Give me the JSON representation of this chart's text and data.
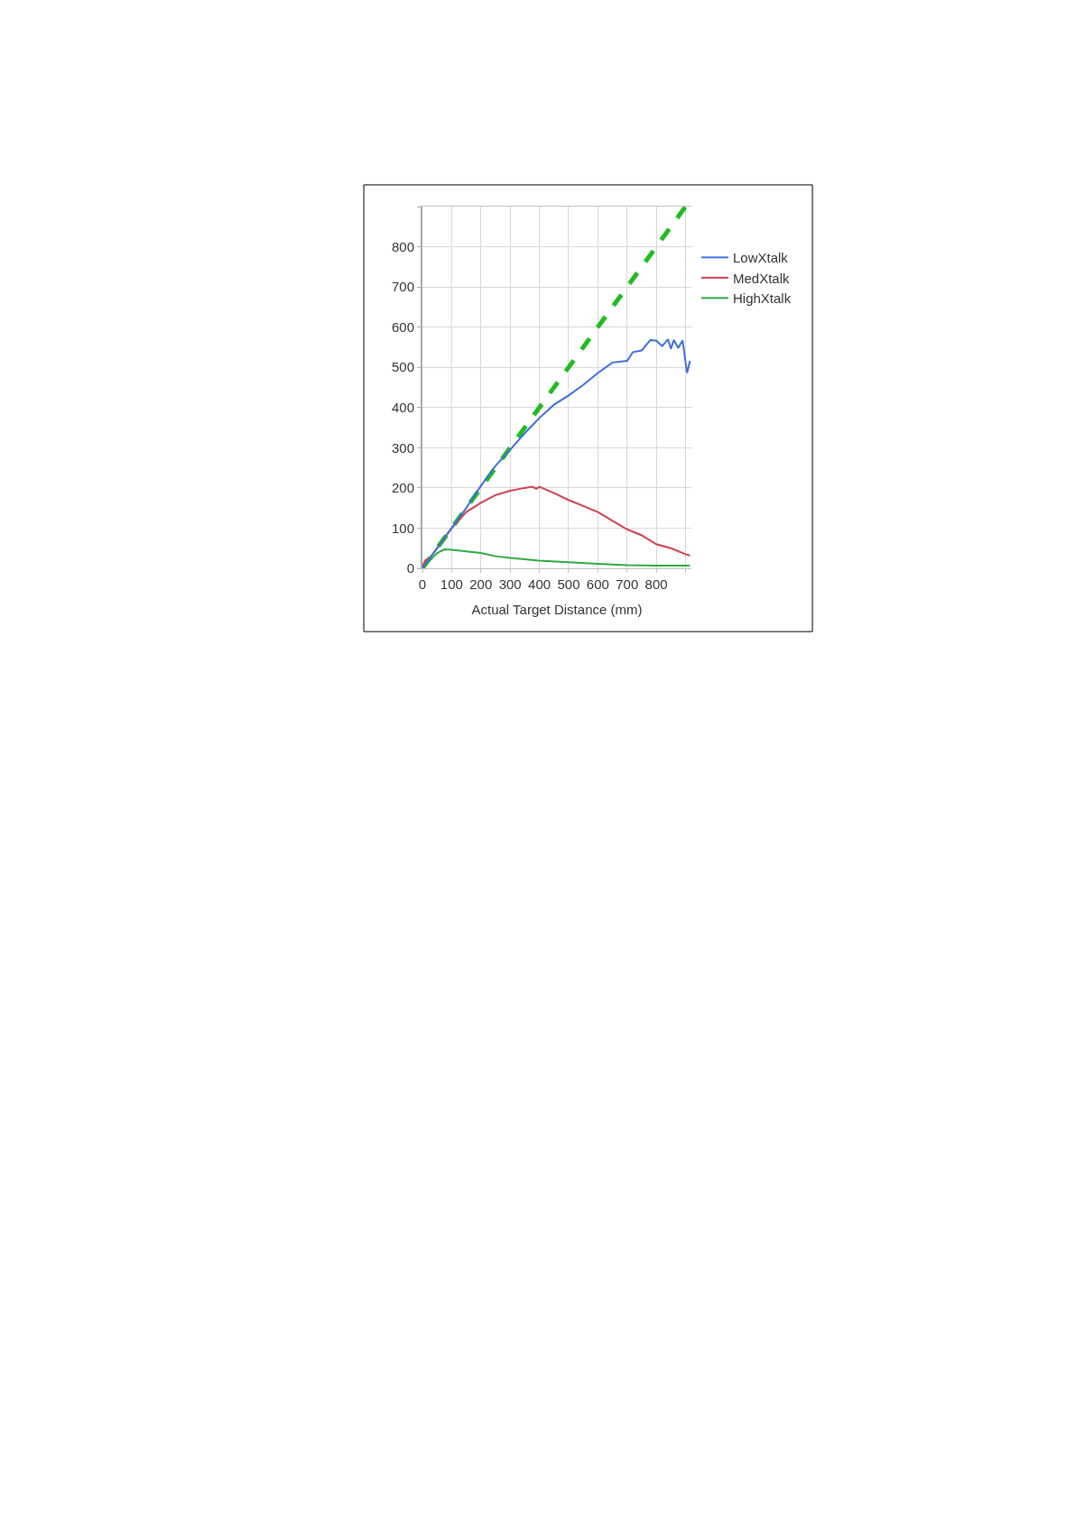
{
  "chart_data": {
    "type": "line",
    "xlabel": "Actual Target Distance (mm)",
    "xlim": [
      0,
      920
    ],
    "xticks": [
      0,
      100,
      200,
      300,
      400,
      500,
      600,
      700,
      800,
      {
        "value": 900,
        "label": null
      }
    ],
    "ylim": [
      0,
      900
    ],
    "yticks": [
      0,
      100,
      200,
      300,
      400,
      500,
      600,
      700,
      800,
      {
        "value": 900,
        "label": null
      }
    ],
    "grid": true,
    "legend": "top right",
    "series": [
      {
        "name": "LowXtalk",
        "color": "#3e6fdc",
        "x": [
          0,
          50,
          100,
          150,
          200,
          250,
          300,
          350,
          400,
          450,
          500,
          550,
          600,
          650,
          700,
          720,
          750,
          780,
          800,
          820,
          840,
          850,
          860,
          875,
          890,
          905,
          915
        ],
        "values": [
          0,
          50,
          100,
          150,
          205,
          255,
          295,
          336,
          374,
          407,
          430,
          456,
          486,
          512,
          516,
          538,
          542,
          568,
          566,
          553,
          570,
          546,
          568,
          548,
          567,
          486,
          516
        ]
      },
      {
        "name": "MedXtalk",
        "color": "#d04050",
        "x": [
          0,
          10,
          25,
          50,
          100,
          150,
          200,
          250,
          300,
          350,
          375,
          390,
          400,
          450,
          500,
          550,
          600,
          650,
          700,
          750,
          800,
          850,
          900,
          915
        ],
        "values": [
          5,
          20,
          25,
          50,
          100,
          140,
          163,
          182,
          193,
          200,
          203,
          198,
          203,
          187,
          170,
          155,
          140,
          118,
          97,
          82,
          60,
          50,
          35,
          32
        ]
      },
      {
        "name": "HighXtalk",
        "color": "#30a840",
        "x": [
          0,
          50,
          75,
          100,
          150,
          200,
          250,
          300,
          400,
          500,
          600,
          700,
          800,
          915
        ],
        "values": [
          0,
          38,
          47,
          46,
          42,
          38,
          30,
          26,
          19,
          15,
          11,
          8,
          7,
          7
        ]
      },
      {
        "color": "#22bb22",
        "line_style": "dashed",
        "x": [
          0,
          900
        ],
        "values": [
          0,
          900
        ]
      }
    ]
  }
}
